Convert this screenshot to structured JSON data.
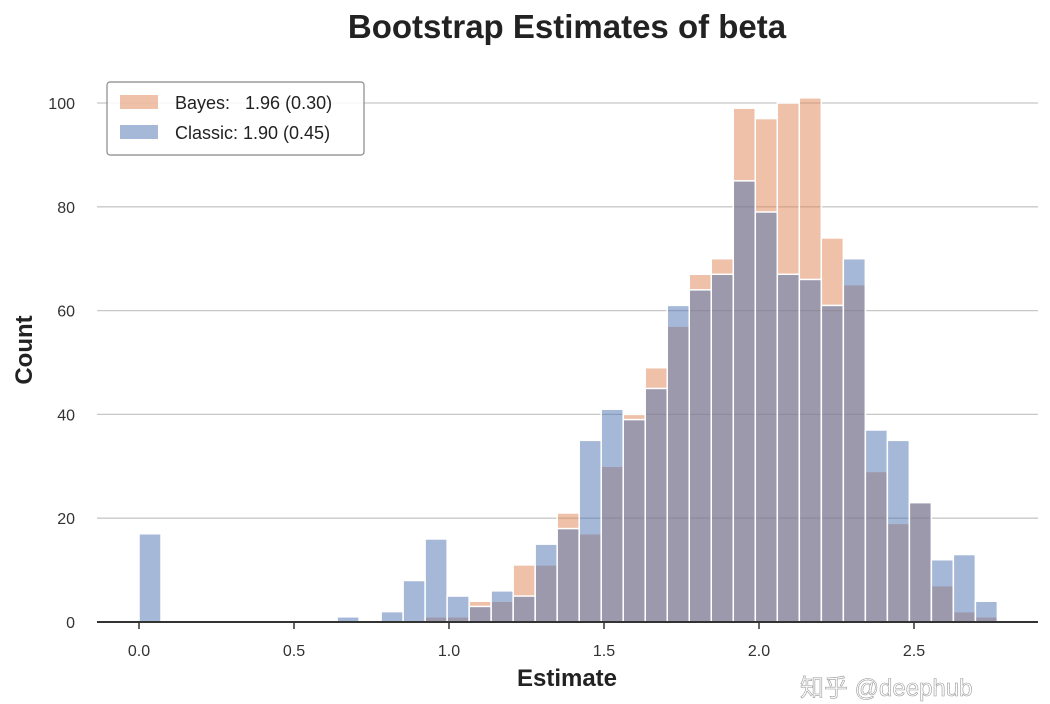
{
  "chart_data": {
    "type": "bar",
    "title": "Bootstrap Estimates of beta",
    "xlabel": "Estimate",
    "ylabel": "Count",
    "xlim": [
      -0.1,
      2.9
    ],
    "ylim": [
      0,
      105
    ],
    "xticks": [
      "0.0",
      "0.5",
      "1.0",
      "1.5",
      "2.0",
      "2.5"
    ],
    "yticks": [
      "0",
      "20",
      "40",
      "60",
      "80",
      "100"
    ],
    "grid": "horizontal",
    "legend_position": "top-left",
    "bin_start": 0.0,
    "bin_width": 0.071,
    "series": [
      {
        "name": "Bayes:   1.96 (0.30)",
        "color": "#dd8452",
        "values": [
          0,
          0,
          0,
          0,
          0,
          0,
          0,
          0,
          0,
          0,
          0,
          0,
          0,
          1,
          1,
          4,
          4,
          11,
          11,
          21,
          17,
          30,
          40,
          49,
          57,
          67,
          70,
          99,
          97,
          100,
          101,
          74,
          65,
          29,
          19,
          23,
          7,
          2,
          1
        ]
      },
      {
        "name": "Classic: 1.90 (0.45)",
        "color": "#4c72b0",
        "values": [
          17,
          0,
          0,
          0,
          0,
          0,
          0,
          0,
          0,
          1,
          0,
          2,
          8,
          16,
          5,
          3,
          6,
          5,
          15,
          18,
          35,
          41,
          39,
          45,
          61,
          64,
          67,
          85,
          79,
          67,
          66,
          61,
          70,
          37,
          35,
          23,
          12,
          13,
          4
        ]
      }
    ],
    "watermark": "知乎 @deephub"
  }
}
